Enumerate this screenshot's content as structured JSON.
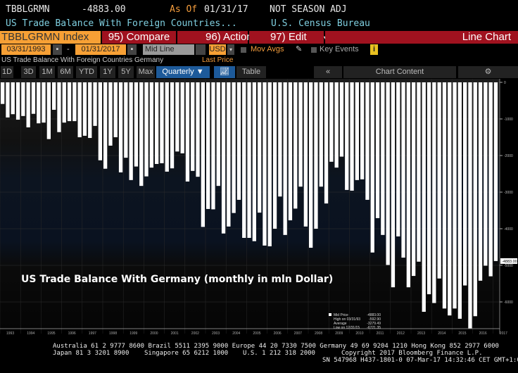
{
  "header": {
    "ticker": "TBBLGRMN",
    "last_value": "-4883.00",
    "as_of_label": "As Of",
    "as_of_date": "01/31/17",
    "adjustment": "NOT SEASON ADJ",
    "description": "US Trade Balance With Foreign Countries...",
    "source": "U.S. Census Bureau"
  },
  "toolbar": {
    "security": "TBBLGRMN Index",
    "compare": "95) Compare",
    "actions": "96) Actions",
    "edit": "97) Edit",
    "dropdown_glyph": "▾",
    "chart_type": "Line Chart"
  },
  "controls": {
    "start_date": "03/31/1993",
    "dash": "-",
    "end_date": "01/31/2017",
    "line_type": "Mid Line",
    "currency": "USD",
    "mov_avgs": "Mov Avgs",
    "key_events": "Key Events",
    "info": "i"
  },
  "series_label": "US Trade Balance With Foreign Countries Germany",
  "last_price_label": "Last Price",
  "ranges": [
    "1D",
    "3D",
    "1M",
    "6M",
    "YTD",
    "1Y",
    "5Y",
    "Max"
  ],
  "period": "Quarterly ▼",
  "table_label": "Table",
  "collapse": "«",
  "chart_content": "Chart Content",
  "settings": "⚙",
  "colors": {
    "orange": "#f7a035",
    "red": "#a0121f",
    "cyan": "#7fcfe0"
  },
  "chart_data": {
    "type": "bar",
    "title": "US Trade Balance With Germany (monthly in mln Dollar)",
    "x_start": "1993 Q1",
    "frequency": "quarterly",
    "values": [
      -590,
      -960,
      -870,
      -1020,
      -920,
      -1230,
      -860,
      -1120,
      -1100,
      -1550,
      -750,
      -1360,
      -1100,
      -1060,
      -1060,
      -1500,
      -1460,
      -1520,
      -1190,
      -2130,
      -2360,
      -1730,
      -1500,
      -2460,
      -2060,
      -2670,
      -2300,
      -2830,
      -2570,
      -2330,
      -2230,
      -2210,
      -2440,
      -2350,
      -1890,
      -1940,
      -2710,
      -2420,
      -2580,
      -3950,
      -3460,
      -3470,
      -2830,
      -4130,
      -3940,
      -3570,
      -3210,
      -4250,
      -4250,
      -4340,
      -3560,
      -4460,
      -4480,
      -4000,
      -3120,
      -4170,
      -3770,
      -3450,
      -2850,
      -3940,
      -4520,
      -4000,
      -2850,
      -3310,
      -2170,
      -2330,
      -2030,
      -2940,
      -2960,
      -2670,
      -2650,
      -3210,
      -4650,
      -3710,
      -4170,
      -4990,
      -5600,
      -4210,
      -4790,
      -5600,
      -5290,
      -4900,
      -6270,
      -5790,
      -6030,
      -5360,
      -6180,
      -6370,
      -6180,
      -6460,
      -5550,
      -6721.35,
      -6390,
      -5420,
      -5010,
      -5300,
      -4883
    ],
    "ylim": [
      -7000,
      0
    ],
    "y_ticks": [
      "0",
      "-1000",
      "-2000",
      "-3000",
      "-4000",
      "-5000",
      "-6000"
    ],
    "x_ticks": [
      "1993",
      "1994",
      "1995",
      "1996",
      "1997",
      "1998",
      "1999",
      "2000",
      "2001",
      "2002",
      "2003",
      "2004",
      "2005",
      "2006",
      "2007",
      "2008",
      "2009",
      "2010",
      "2011",
      "2012",
      "2013",
      "2014",
      "2015",
      "2016",
      "2017"
    ],
    "last_tag": "-4883.00",
    "legend": [
      {
        "label": "Mid Price",
        "value": "-4883.00"
      },
      {
        "label": "High on 03/31/93",
        "value": "-592.90"
      },
      {
        "label": "Average",
        "value": "-3279.49"
      },
      {
        "label": "Low on 12/31/15",
        "value": "-6721.35"
      }
    ]
  },
  "footer": {
    "line1": "Australia 61 2 9777 8600 Brazil 5511 2395 9000 Europe 44 20 7330 7500 Germany 49 69 9204 1210 Hong Kong 852 2977 6000",
    "line2a": "Japan 81 3 3201 8900",
    "line2b": "Singapore 65 6212 1000",
    "line2c": "U.S. 1 212 318 2000",
    "line2d": "Copyright 2017 Bloomberg Finance L.P.",
    "line3": "SN 547968 H437-1801-0 07-Mar-17 14:32:46 CET  GMT+1:00"
  }
}
